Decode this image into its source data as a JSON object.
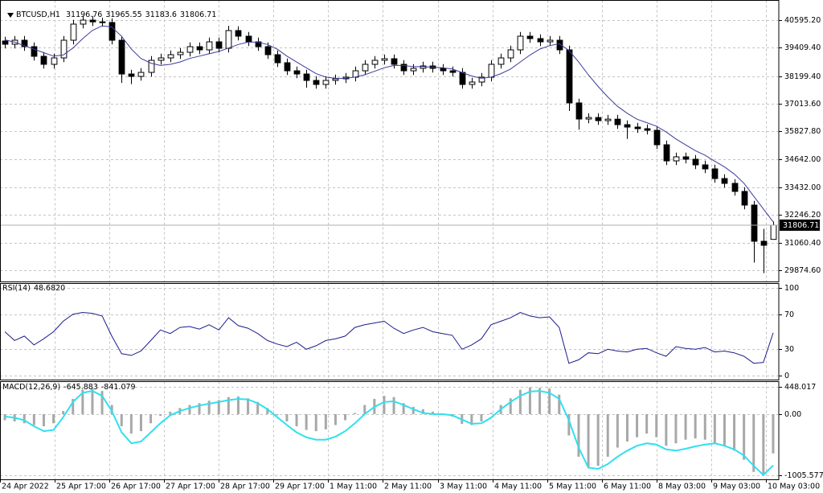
{
  "chart_data": [
    {
      "type": "candlestick",
      "symbol": "BTCUSD,H1",
      "xlim": [
        0,
        80
      ],
      "xticks": [
        {
          "value": 0,
          "label": "24 Apr 2022"
        },
        {
          "value": 5.625,
          "label": "25 Apr 17:00"
        },
        {
          "value": 11.25,
          "label": "26 Apr 17:00"
        },
        {
          "value": 16.875,
          "label": "27 Apr 17:00"
        },
        {
          "value": 22.5,
          "label": "28 Apr 17:00"
        },
        {
          "value": 28.125,
          "label": "29 Apr 17:00"
        },
        {
          "value": 33.75,
          "label": "1 May 11:00"
        },
        {
          "value": 39.375,
          "label": "2 May 11:00"
        },
        {
          "value": 45,
          "label": "3 May 11:00"
        },
        {
          "value": 50.625,
          "label": "4 May 11:00"
        },
        {
          "value": 56.25,
          "label": "5 May 11:00"
        },
        {
          "value": 61.875,
          "label": "6 May 11:00"
        },
        {
          "value": 67.5,
          "label": "8 May 03:00"
        },
        {
          "value": 73.125,
          "label": "9 May 03:00"
        },
        {
          "value": 78.75,
          "label": "10 May 03:00"
        }
      ],
      "ylim": [
        29392,
        41388
      ],
      "yticks": [
        {
          "value": 40595.2,
          "label": "40595.20"
        },
        {
          "value": 39409.4,
          "label": "39409.40"
        },
        {
          "value": 38199.4,
          "label": "38199.40"
        },
        {
          "value": 37013.6,
          "label": "37013.60"
        },
        {
          "value": 35827.8,
          "label": "35827.80"
        },
        {
          "value": 34642,
          "label": "34642.00"
        },
        {
          "value": 33432,
          "label": "33432.00"
        },
        {
          "value": 32246.2,
          "label": "32246.20"
        },
        {
          "value": 31060.4,
          "label": "31060.40"
        },
        {
          "value": 29874.6,
          "label": "29874.60"
        }
      ],
      "grid": true,
      "up_color": "#ffffff",
      "down_color": "#000000",
      "open": [
        39700,
        39561,
        39733,
        39457,
        39044,
        38700,
        38975,
        39733,
        40423,
        40595,
        40520,
        40492,
        39733,
        38285,
        38182,
        38354,
        38872,
        38975,
        39113,
        39216,
        39457,
        39320,
        39664,
        39388,
        40147,
        39906,
        39664,
        39457,
        39113,
        38768,
        38423,
        38285,
        38010,
        37837,
        38010,
        38079,
        38148,
        38423,
        38700,
        38872,
        38941,
        38700,
        38423,
        38527,
        38630,
        38527,
        38423,
        38354,
        37837,
        37941,
        38148,
        38700,
        38975,
        39320,
        39906,
        39802,
        39664,
        39733,
        39320,
        37045,
        36355,
        36420,
        36286,
        36350,
        36114,
        36010,
        35941,
        35872,
        35252,
        34562,
        34735,
        34632,
        34390,
        34218,
        33804,
        33597,
        33252,
        32667,
        31116,
        31196.76
      ],
      "high": [
        39880,
        39913,
        39913,
        39637,
        39224,
        39155,
        39913,
        40603,
        40775,
        40775,
        40700,
        40672,
        39913,
        38465,
        38534,
        39052,
        39155,
        39293,
        39396,
        39637,
        39637,
        39844,
        39844,
        40350,
        40327,
        40086,
        39844,
        39637,
        39293,
        38948,
        38603,
        38465,
        38190,
        38190,
        38259,
        38328,
        38603,
        38880,
        39052,
        39121,
        39121,
        38880,
        38707,
        38810,
        38810,
        38707,
        38603,
        38534,
        38121,
        38328,
        38880,
        39155,
        39500,
        40086,
        40086,
        39982,
        39913,
        39913,
        39500,
        37225,
        36600,
        36600,
        36530,
        36530,
        36294,
        36190,
        36121,
        36052,
        35432,
        34915,
        34915,
        34812,
        34570,
        34398,
        33984,
        33777,
        33432,
        32847,
        31650,
        31965.55
      ],
      "low": [
        39380,
        39381,
        39277,
        38864,
        38520,
        38520,
        38795,
        39553,
        40243,
        40340,
        40312,
        39553,
        37900,
        37850,
        38002,
        38174,
        38692,
        38795,
        38933,
        39036,
        39140,
        39140,
        39208,
        39208,
        39726,
        39484,
        39277,
        38933,
        38588,
        38243,
        38105,
        37700,
        37657,
        37657,
        37830,
        37899,
        37968,
        38243,
        38520,
        38692,
        38520,
        38243,
        38243,
        38347,
        38347,
        38243,
        38174,
        37657,
        37657,
        37761,
        37968,
        38520,
        38795,
        39140,
        39622,
        39484,
        39484,
        39140,
        36700,
        35900,
        36175,
        36106,
        36106,
        35934,
        35500,
        35761,
        35692,
        35072,
        34382,
        34382,
        34452,
        34210,
        34038,
        33624,
        33417,
        33072,
        32487,
        30200,
        29750,
        31183.6
      ],
      "close": [
        39561,
        39733,
        39457,
        39044,
        38700,
        38975,
        39733,
        40423,
        40595,
        40520,
        40492,
        39733,
        38285,
        38182,
        38354,
        38872,
        38975,
        39113,
        39216,
        39457,
        39320,
        39664,
        39388,
        40147,
        39906,
        39664,
        39457,
        39113,
        38768,
        38423,
        38285,
        38010,
        37837,
        38010,
        38079,
        38148,
        38423,
        38700,
        38872,
        38941,
        38700,
        38423,
        38527,
        38630,
        38527,
        38423,
        38354,
        37837,
        37941,
        38148,
        38700,
        38975,
        39320,
        39906,
        39802,
        39664,
        39733,
        39320,
        37045,
        36355,
        36420,
        36286,
        36350,
        36114,
        36010,
        35941,
        35872,
        35252,
        34562,
        34735,
        34632,
        34390,
        34218,
        33804,
        33597,
        33252,
        32667,
        31116,
        30943,
        31806.71
      ],
      "ma": {
        "color": "#3c3c9a",
        "values": [
          39750,
          39650,
          39500,
          39350,
          39200,
          39050,
          39100,
          39400,
          39800,
          40150,
          40350,
          40300,
          39900,
          39350,
          38950,
          38750,
          38650,
          38700,
          38800,
          38950,
          39050,
          39150,
          39250,
          39400,
          39550,
          39650,
          39650,
          39550,
          39350,
          39050,
          38800,
          38550,
          38300,
          38150,
          38100,
          38100,
          38150,
          38250,
          38400,
          38550,
          38650,
          38650,
          38600,
          38600,
          38580,
          38550,
          38500,
          38350,
          38200,
          38100,
          38150,
          38300,
          38500,
          38800,
          39100,
          39350,
          39500,
          39580,
          39300,
          38800,
          38250,
          37750,
          37300,
          36900,
          36600,
          36350,
          36200,
          36050,
          35800,
          35500,
          35250,
          35000,
          34800,
          34550,
          34300,
          34000,
          33600,
          33050,
          32500,
          31950
        ]
      }
    },
    {
      "type": "line",
      "title": "RSI(14)",
      "last_label": "48.6820",
      "color": "#1c1c8c",
      "ylim": [
        0,
        100
      ],
      "yticks": [
        100,
        70,
        30,
        0
      ],
      "grid": true,
      "values": [
        50,
        40,
        45,
        35,
        42,
        50,
        62,
        70,
        72,
        71,
        68,
        45,
        25,
        23,
        28,
        40,
        52,
        48,
        55,
        56,
        53,
        58,
        52,
        66,
        57,
        54,
        48,
        40,
        36,
        33,
        38,
        30,
        34,
        40,
        42,
        45,
        55,
        58,
        60,
        62,
        54,
        48,
        52,
        55,
        50,
        48,
        46,
        30,
        35,
        42,
        58,
        62,
        66,
        72,
        68,
        66,
        67,
        55,
        14,
        18,
        26,
        25,
        30,
        28,
        27,
        30,
        31,
        26,
        22,
        33,
        31,
        30,
        32,
        27,
        28,
        26,
        22,
        14,
        15,
        48.682
      ]
    },
    {
      "type": "macd",
      "title": "MACD(12,26,9)",
      "ylim": [
        -1005.577,
        448.017
      ],
      "yticks": [
        448.017,
        {
          "value": 0,
          "label": "0.00"
        },
        -1005.577
      ],
      "grid": true,
      "histogram": {
        "color": "#a8a8a8",
        "values": [
          -100,
          -120,
          -150,
          -180,
          -200,
          -150,
          50,
          250,
          400,
          420,
          380,
          150,
          -200,
          -320,
          -280,
          -150,
          -30,
          40,
          100,
          150,
          180,
          220,
          230,
          280,
          290,
          260,
          200,
          100,
          -20,
          -120,
          -200,
          -260,
          -280,
          -250,
          -180,
          -100,
          20,
          150,
          250,
          300,
          280,
          180,
          120,
          80,
          40,
          0,
          -40,
          -160,
          -180,
          -120,
          20,
          150,
          260,
          400,
          440,
          430,
          420,
          320,
          -350,
          -700,
          -880,
          -850,
          -700,
          -550,
          -450,
          -380,
          -320,
          -380,
          -520,
          -480,
          -420,
          -400,
          -420,
          -480,
          -520,
          -600,
          -750,
          -950,
          -1000,
          -645.883
        ]
      },
      "signal": {
        "color": "#2fe0f0",
        "values": [
          -40,
          -60,
          -100,
          -200,
          -280,
          -260,
          -50,
          200,
          350,
          380,
          300,
          50,
          -300,
          -480,
          -450,
          -300,
          -150,
          -20,
          50,
          100,
          140,
          170,
          200,
          230,
          250,
          240,
          180,
          80,
          -50,
          -180,
          -300,
          -380,
          -420,
          -420,
          -370,
          -280,
          -150,
          0,
          120,
          200,
          210,
          150,
          80,
          20,
          0,
          0,
          -20,
          -90,
          -160,
          -150,
          -60,
          80,
          200,
          300,
          370,
          380,
          350,
          250,
          -100,
          -550,
          -880,
          -900,
          -820,
          -700,
          -600,
          -520,
          -480,
          -500,
          -580,
          -600,
          -570,
          -530,
          -500,
          -480,
          -520,
          -580,
          -680,
          -850,
          -1000,
          -841.079
        ]
      }
    }
  ]
}
